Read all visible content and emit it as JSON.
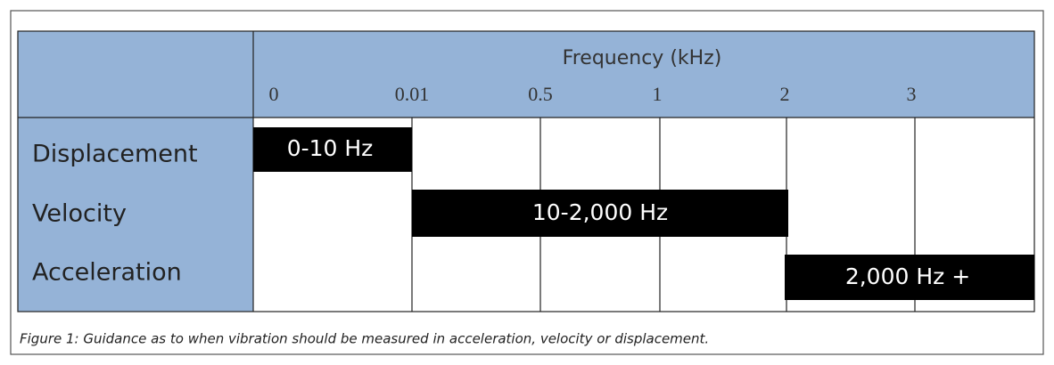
{
  "header": {
    "title": "Frequency (kHz)",
    "ticks": [
      "0",
      "0.01",
      "0.5",
      "1",
      "2",
      "3"
    ]
  },
  "rows": [
    {
      "label": "Displacement",
      "bar": "0-10 Hz"
    },
    {
      "label": "Velocity",
      "bar": "10-2,000 Hz"
    },
    {
      "label": "Acceleration",
      "bar": "2,000 Hz +"
    }
  ],
  "caption": "Figure 1: Guidance as to when vibration should be measured in acceleration, velocity or displacement."
}
